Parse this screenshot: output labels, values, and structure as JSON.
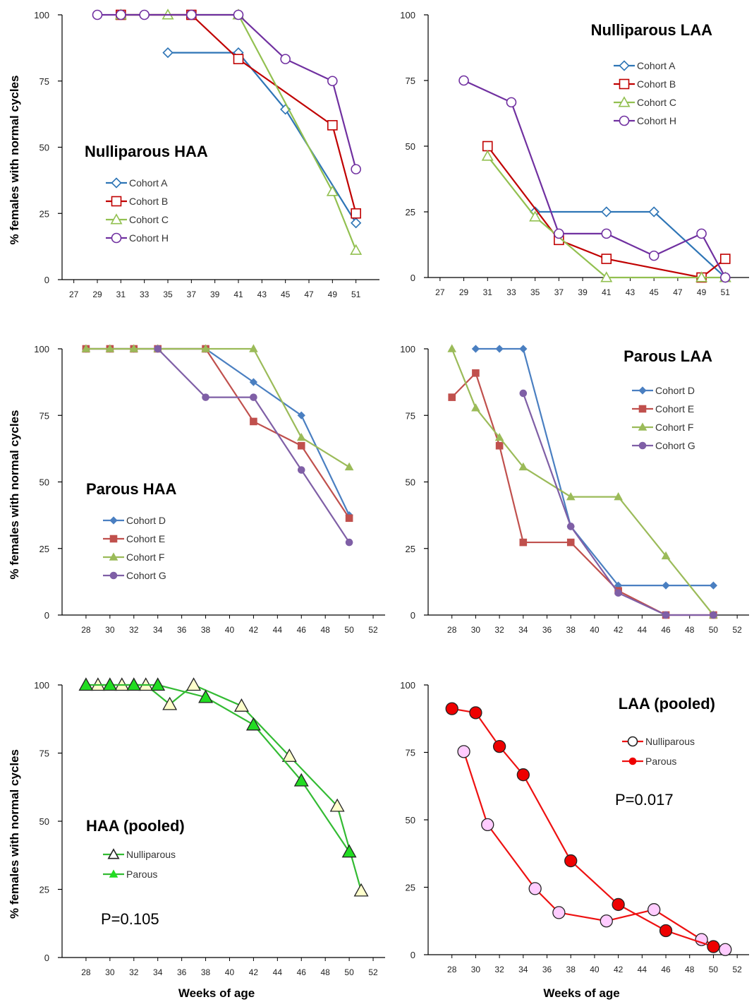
{
  "figure": {
    "ylabel": "% females with normal cycles",
    "xlabel": "Weeks of age"
  },
  "chart_data": [
    {
      "type": "line",
      "title": "Nulliparous HAA",
      "ylabel": "% females with normal cycles",
      "xlabel": "",
      "ylim": [
        0,
        100
      ],
      "yticks": [
        0,
        25,
        50,
        75,
        100
      ],
      "xlim": [
        26,
        53
      ],
      "xticks": [
        27,
        29,
        31,
        33,
        35,
        37,
        39,
        41,
        43,
        45,
        47,
        49,
        51
      ],
      "legend": "left-middle",
      "series": [
        {
          "name": "Cohort A",
          "color": "#2e75b6",
          "marker": "diamond-open",
          "x": [
            35,
            41,
            45,
            51
          ],
          "y": [
            85.7,
            85.7,
            64.3,
            21.4
          ]
        },
        {
          "name": "Cohort B",
          "color": "#c00000",
          "marker": "square-open",
          "x": [
            31,
            37,
            41,
            49,
            51
          ],
          "y": [
            100,
            100,
            83.3,
            58.3,
            25
          ]
        },
        {
          "name": "Cohort C",
          "color": "#92c050",
          "marker": "triangle-open",
          "x": [
            31,
            35,
            41,
            49,
            51
          ],
          "y": [
            100,
            100,
            100,
            33.3,
            11.1
          ]
        },
        {
          "name": "Cohort H",
          "color": "#7030a0",
          "marker": "circle-open",
          "x": [
            29,
            31,
            33,
            37,
            41,
            45,
            49,
            51
          ],
          "y": [
            100,
            100,
            100,
            100,
            100,
            83.3,
            75,
            41.7
          ]
        }
      ]
    },
    {
      "type": "line",
      "title": "Nulliparous LAA",
      "xlabel": "",
      "ylim": [
        0,
        100
      ],
      "yticks": [
        0,
        25,
        50,
        75,
        100
      ],
      "xlim": [
        26,
        53
      ],
      "xticks": [
        27,
        29,
        31,
        33,
        35,
        37,
        39,
        41,
        43,
        45,
        47,
        49,
        51
      ],
      "legend": "top-right",
      "series": [
        {
          "name": "Cohort A",
          "color": "#2e75b6",
          "marker": "diamond-open",
          "x": [
            35,
            41,
            45,
            51
          ],
          "y": [
            25,
            25,
            25,
            0
          ]
        },
        {
          "name": "Cohort B",
          "color": "#c00000",
          "marker": "square-open",
          "x": [
            31,
            37,
            41,
            49,
            51
          ],
          "y": [
            50,
            14.3,
            7.1,
            0,
            7.1
          ]
        },
        {
          "name": "Cohort C",
          "color": "#92c050",
          "marker": "triangle-open",
          "x": [
            31,
            35,
            41,
            49,
            51
          ],
          "y": [
            46.2,
            23.1,
            0,
            0,
            0
          ]
        },
        {
          "name": "Cohort H",
          "color": "#7030a0",
          "marker": "circle-open",
          "x": [
            29,
            33,
            37,
            41,
            45,
            49,
            51
          ],
          "y": [
            75,
            66.7,
            16.7,
            16.7,
            8.3,
            16.7,
            0
          ]
        }
      ]
    },
    {
      "type": "line",
      "title": "Parous HAA",
      "ylabel": "% females with normal cycles",
      "xlabel": "",
      "ylim": [
        0,
        100
      ],
      "yticks": [
        0,
        25,
        50,
        75,
        100
      ],
      "xlim": [
        26,
        53
      ],
      "xticks": [
        28,
        30,
        32,
        34,
        36,
        38,
        40,
        42,
        44,
        46,
        48,
        50,
        52
      ],
      "legend": "left-lower",
      "series": [
        {
          "name": "Cohort D",
          "color": "#4a7fc1",
          "marker": "diamond-filled",
          "x": [
            28,
            30,
            32,
            34,
            38,
            42,
            46,
            50
          ],
          "y": [
            100,
            100,
            100,
            100,
            100,
            87.5,
            75,
            37.5
          ]
        },
        {
          "name": "Cohort E",
          "color": "#c0504d",
          "marker": "square-filled",
          "x": [
            28,
            30,
            32,
            34,
            38,
            42,
            46,
            50
          ],
          "y": [
            100,
            100,
            100,
            100,
            100,
            72.7,
            63.6,
            36.4
          ]
        },
        {
          "name": "Cohort F",
          "color": "#9bbb59",
          "marker": "triangle-filled",
          "x": [
            28,
            30,
            32,
            34,
            38,
            42,
            46,
            50
          ],
          "y": [
            100,
            100,
            100,
            100,
            100,
            100,
            66.7,
            55.6
          ]
        },
        {
          "name": "Cohort G",
          "color": "#7f5fa6",
          "marker": "circle-filled",
          "x": [
            34,
            38,
            42,
            46,
            50
          ],
          "y": [
            100,
            81.8,
            81.8,
            54.5,
            27.3
          ]
        }
      ]
    },
    {
      "type": "line",
      "title": "Parous LAA",
      "xlabel": "",
      "ylim": [
        0,
        100
      ],
      "yticks": [
        0,
        25,
        50,
        75,
        100
      ],
      "xlim": [
        26,
        53
      ],
      "xticks": [
        28,
        30,
        32,
        34,
        36,
        38,
        40,
        42,
        44,
        46,
        48,
        50,
        52
      ],
      "legend": "top-right",
      "series": [
        {
          "name": "Cohort D",
          "color": "#4a7fc1",
          "marker": "diamond-filled",
          "x": [
            30,
            32,
            34,
            38,
            42,
            46,
            50
          ],
          "y": [
            100,
            100,
            100,
            33.3,
            11.1,
            11.1,
            11.1
          ]
        },
        {
          "name": "Cohort E",
          "color": "#c0504d",
          "marker": "square-filled",
          "x": [
            28,
            30,
            32,
            34,
            38,
            42,
            46,
            50
          ],
          "y": [
            81.8,
            90.9,
            63.6,
            27.3,
            27.3,
            9.1,
            0,
            0
          ]
        },
        {
          "name": "Cohort F",
          "color": "#9bbb59",
          "marker": "triangle-filled",
          "x": [
            28,
            30,
            32,
            34,
            38,
            42,
            46,
            50
          ],
          "y": [
            100,
            77.8,
            66.7,
            55.6,
            44.4,
            44.4,
            22.2,
            0
          ]
        },
        {
          "name": "Cohort G",
          "color": "#7f5fa6",
          "marker": "circle-filled",
          "x": [
            34,
            38,
            42,
            46,
            50
          ],
          "y": [
            83.3,
            33.3,
            8.3,
            0,
            0
          ]
        }
      ]
    },
    {
      "type": "line",
      "title": "HAA (pooled)",
      "ylabel": "% females with normal cycles",
      "xlabel": "Weeks of age",
      "ylim": [
        0,
        100
      ],
      "yticks": [
        0,
        25,
        50,
        75,
        100
      ],
      "xlim": [
        26,
        53
      ],
      "xticks": [
        28,
        30,
        32,
        34,
        36,
        38,
        40,
        42,
        44,
        46,
        48,
        50,
        52
      ],
      "legend": "left-lower",
      "annotation": "P=0.105",
      "series": [
        {
          "name": "Nulliparous",
          "color": "#33bb33",
          "marker": "triangle-open-cream",
          "x": [
            29,
            31,
            33,
            35,
            37,
            41,
            45,
            49,
            51
          ],
          "y": [
            100,
            100,
            100,
            92.9,
            100,
            92.3,
            73.9,
            55.6,
            24.5
          ]
        },
        {
          "name": "Parous",
          "color": "#33bb33",
          "marker": "triangle-green",
          "x": [
            28,
            30,
            32,
            34,
            38,
            42,
            46,
            50
          ],
          "y": [
            100,
            100,
            100,
            100,
            95.5,
            85.4,
            64.9,
            38.8
          ]
        }
      ]
    },
    {
      "type": "line",
      "title": "LAA (pooled)",
      "xlabel": "Weeks of age",
      "ylim": [
        0,
        100
      ],
      "yticks": [
        0,
        25,
        50,
        75,
        100
      ],
      "xlim": [
        26,
        53
      ],
      "xticks": [
        28,
        30,
        32,
        34,
        36,
        38,
        40,
        42,
        44,
        46,
        48,
        50,
        52
      ],
      "legend": "top-right",
      "annotation": "P=0.017",
      "series": [
        {
          "name": "Nulliparous",
          "color": "#ee1111",
          "marker": "circle-pink",
          "x": [
            29,
            31,
            35,
            37,
            41,
            45,
            49,
            51
          ],
          "y": [
            75.3,
            48.2,
            24.5,
            15.6,
            12.5,
            16.7,
            5.6,
            1.9
          ]
        },
        {
          "name": "Parous",
          "color": "#ee1111",
          "marker": "circle-red",
          "x": [
            28,
            30,
            32,
            34,
            38,
            42,
            46,
            50
          ],
          "y": [
            91.2,
            89.7,
            77.2,
            66.7,
            34.8,
            18.6,
            8.9,
            3.0
          ]
        }
      ]
    }
  ]
}
